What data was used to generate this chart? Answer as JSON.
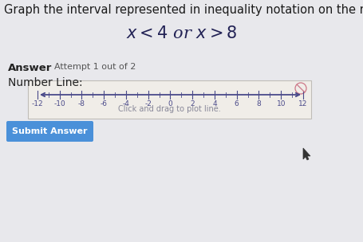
{
  "page_bg": "#e8e8ec",
  "title_text": "Graph the interval represented in inequality notation on the number lin",
  "answer_label": "Answer",
  "attempt_text": "Attempt 1 out of 2",
  "number_line_label": "Number Line:",
  "click_text": "Click and drag to plot line.",
  "submit_text": "Submit Answer",
  "submit_bg": "#4a90d9",
  "submit_text_color": "#ffffff",
  "box_bg": "#f0ede8",
  "box_border": "#c0bdb8",
  "number_line_color": "#4a4a8a",
  "tick_color": "#4a4a8a",
  "tick_labels": [
    -12,
    -10,
    -8,
    -6,
    -4,
    -2,
    0,
    2,
    4,
    6,
    8,
    10,
    12
  ],
  "title_color": "#1a1a1a",
  "inequality_color": "#222255",
  "text_color": "#222222",
  "gray_text": "#888899",
  "icon_color": "#cc7788",
  "cursor_color": "#333333"
}
